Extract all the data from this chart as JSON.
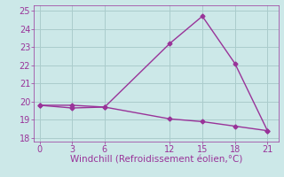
{
  "line1_x": [
    0,
    3,
    6,
    12,
    15,
    18,
    21
  ],
  "line1_y": [
    19.8,
    19.8,
    19.7,
    23.2,
    24.7,
    22.1,
    18.4
  ],
  "line2_x": [
    0,
    3,
    6,
    12,
    15,
    18,
    21
  ],
  "line2_y": [
    19.8,
    19.65,
    19.7,
    19.05,
    18.9,
    18.65,
    18.4
  ],
  "line_color": "#993399",
  "bg_color": "#cce8e8",
  "grid_color": "#aacccc",
  "xlabel": "Windchill (Refroidissement éolien,°C)",
  "xlabel_color": "#993399",
  "xlabel_fontsize": 7.5,
  "xlim": [
    -0.5,
    22
  ],
  "ylim": [
    17.8,
    25.3
  ],
  "yticks": [
    18,
    19,
    20,
    21,
    22,
    23,
    24,
    25
  ],
  "xticks": [
    0,
    3,
    6,
    12,
    15,
    18,
    21
  ],
  "tick_label_color": "#993399",
  "tick_fontsize": 7,
  "marker": "D",
  "marker_size": 2.5,
  "linewidth": 1.0
}
